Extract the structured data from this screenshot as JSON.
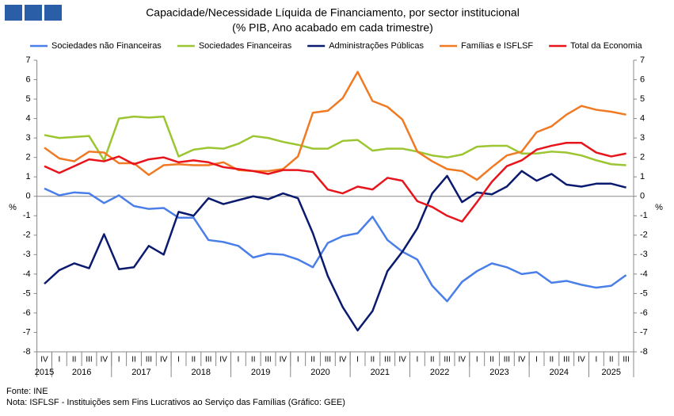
{
  "chart_data": {
    "type": "line",
    "title": "Capacidade/Necessidade Líquida de Financiamento, por sector institucional",
    "subtitle": "(% PIB, Ano acabado em cada trimestre)",
    "ylabel": "%",
    "y2label": "%",
    "categories": [
      "IV",
      "I",
      "II",
      "III",
      "IV",
      "I",
      "II",
      "III",
      "IV",
      "I",
      "II",
      "III",
      "IV",
      "I",
      "II",
      "III",
      "IV",
      "I",
      "II",
      "III",
      "IV",
      "I",
      "II",
      "III",
      "IV",
      "I",
      "II",
      "III",
      "IV",
      "I",
      "II",
      "III",
      "IV",
      "I",
      "II",
      "III",
      "IV",
      "I",
      "II",
      "III"
    ],
    "years": [
      "2015",
      "2016",
      "2017",
      "2018",
      "2019",
      "2020",
      "2021",
      "2022",
      "2023",
      "2024",
      "2025"
    ],
    "ylim": [
      -8,
      7
    ],
    "yticks": [
      -8,
      -7,
      -6,
      -5,
      -4,
      -3,
      -2,
      -1,
      0,
      1,
      2,
      3,
      4,
      5,
      6,
      7
    ],
    "y2lim": [
      -8,
      7
    ],
    "y2ticks": [
      -8,
      -7,
      -6,
      -5,
      -4,
      -3,
      -2,
      -1,
      0,
      1,
      2,
      3,
      4,
      5,
      6,
      7
    ],
    "series": [
      {
        "name": "Sociedades não Financeiras",
        "color": "#4a7ee8",
        "values": [
          0.4,
          0.05,
          0.2,
          0.15,
          -0.35,
          0.05,
          -0.5,
          -0.65,
          -0.6,
          -1.1,
          -1.1,
          -2.25,
          -2.35,
          -2.55,
          -3.15,
          -2.95,
          -3.0,
          -3.25,
          -3.65,
          -2.4,
          -2.05,
          -1.9,
          -1.05,
          -2.25,
          -2.85,
          -3.25,
          -4.6,
          -5.4,
          -4.4,
          -3.85,
          -3.45,
          -3.65,
          -4.0,
          -3.9,
          -4.45,
          -4.35,
          -4.55,
          -4.7,
          -4.6,
          -4.05
        ]
      },
      {
        "name": "Sociedades Financeiras",
        "color": "#9bc631",
        "values": [
          3.15,
          3.0,
          3.05,
          3.1,
          1.85,
          4.0,
          4.1,
          4.05,
          4.1,
          2.05,
          2.4,
          2.5,
          2.45,
          2.7,
          3.1,
          3.0,
          2.8,
          2.65,
          2.45,
          2.45,
          2.85,
          2.9,
          2.35,
          2.45,
          2.45,
          2.3,
          2.1,
          2.0,
          2.15,
          2.55,
          2.6,
          2.6,
          2.2,
          2.2,
          2.3,
          2.25,
          2.1,
          1.85,
          1.65,
          1.6
        ]
      },
      {
        "name": "Administrações Públicas",
        "color": "#0a1a6e",
        "values": [
          -4.5,
          -3.8,
          -3.45,
          -3.7,
          -1.95,
          -3.75,
          -3.65,
          -2.55,
          -3.0,
          -0.8,
          -1.0,
          -0.1,
          -0.4,
          -0.2,
          0.0,
          -0.15,
          0.15,
          -0.1,
          -1.9,
          -4.1,
          -5.7,
          -6.9,
          -5.9,
          -3.85,
          -2.85,
          -1.65,
          0.15,
          1.05,
          -0.3,
          0.2,
          0.1,
          0.5,
          1.3,
          0.8,
          1.15,
          0.6,
          0.5,
          0.65,
          0.65,
          0.45
        ]
      },
      {
        "name": "Famílias e ISFLSF",
        "color": "#f07a23",
        "values": [
          2.5,
          1.95,
          1.8,
          2.3,
          2.25,
          1.7,
          1.7,
          1.1,
          1.6,
          1.65,
          1.6,
          1.6,
          1.75,
          1.35,
          1.3,
          1.3,
          1.4,
          2.05,
          4.3,
          4.4,
          5.05,
          6.4,
          4.9,
          4.6,
          3.95,
          2.3,
          1.8,
          1.4,
          1.3,
          0.85,
          1.5,
          2.1,
          2.3,
          3.3,
          3.6,
          4.2,
          4.65,
          4.45,
          4.35,
          4.2
        ]
      },
      {
        "name": "Total da Economia",
        "color": "#e8141c",
        "values": [
          1.55,
          1.2,
          1.55,
          1.9,
          1.8,
          2.05,
          1.65,
          1.9,
          2.0,
          1.75,
          1.85,
          1.75,
          1.5,
          1.4,
          1.3,
          1.15,
          1.35,
          1.35,
          1.25,
          0.35,
          0.15,
          0.5,
          0.35,
          0.95,
          0.8,
          -0.25,
          -0.55,
          -1.0,
          -1.3,
          -0.3,
          0.75,
          1.55,
          1.85,
          2.4,
          2.6,
          2.75,
          2.75,
          2.25,
          2.05,
          2.2
        ]
      }
    ],
    "notes": [
      "Fonte: INE",
      "Nota: ISFLSF - Instituições sem Fins Lucrativos ao Serviço das Famílias (Gráfico: GEE)"
    ]
  }
}
